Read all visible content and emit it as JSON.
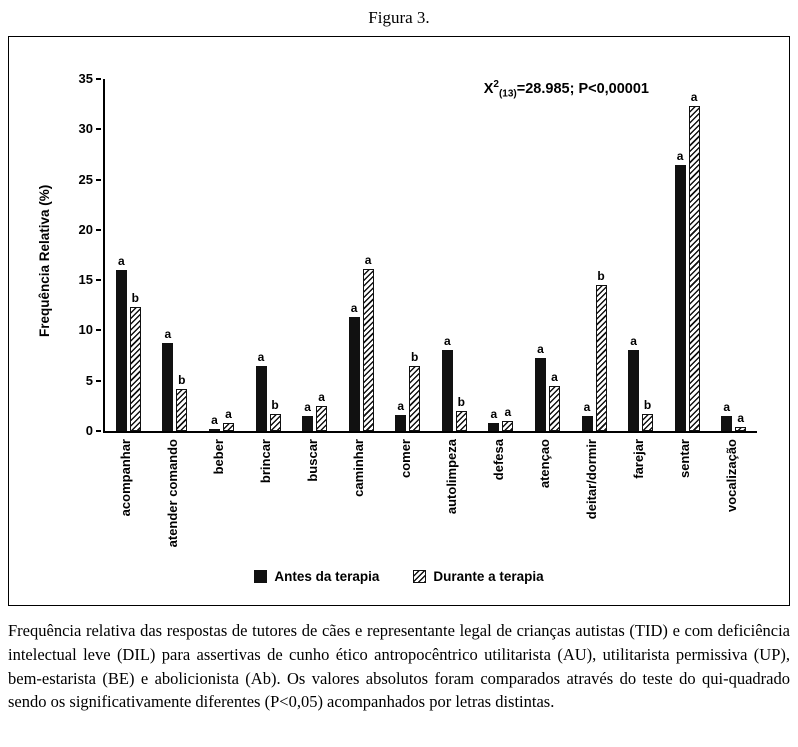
{
  "figure_title": "Figura 3.",
  "chart_data": {
    "type": "bar",
    "title": "",
    "xlabel": "",
    "ylabel": "Frequência Relativa (%)",
    "ylim": [
      0,
      35
    ],
    "yticks": [
      0,
      5,
      10,
      15,
      20,
      25,
      30,
      35
    ],
    "grid": false,
    "legend_position": "bottom",
    "annotation": {
      "base": "X",
      "sup": "2",
      "sub": "(13)",
      "rest": "=28.985; P<0,00001"
    },
    "categories": [
      "acompanhar",
      "atender comando",
      "beber",
      "brincar",
      "buscar",
      "caminhar",
      "comer",
      "autolimpeza",
      "defesa",
      "atençao",
      "deitar/dormir",
      "farejar",
      "sentar",
      "vocalização"
    ],
    "series": [
      {
        "name": "Antes da terapia",
        "style": "solid-black",
        "values": [
          16.0,
          8.8,
          0.2,
          6.5,
          1.5,
          11.3,
          1.6,
          8.1,
          0.8,
          7.3,
          1.5,
          8.1,
          26.5,
          1.5
        ],
        "letters": [
          "a",
          "a",
          "a",
          "a",
          "a",
          "a",
          "a",
          "a",
          "a",
          "a",
          "a",
          "a",
          "a",
          "a"
        ]
      },
      {
        "name": "Durante a terapia",
        "style": "hatched",
        "values": [
          12.3,
          4.2,
          0.8,
          1.7,
          2.5,
          16.1,
          6.5,
          2.0,
          1.0,
          4.5,
          14.5,
          1.7,
          32.3,
          0.4
        ],
        "letters": [
          "b",
          "b",
          "a",
          "b",
          "a",
          "a",
          "b",
          "b",
          "a",
          "a",
          "b",
          "b",
          "a",
          "a"
        ]
      }
    ]
  },
  "caption": "Frequência relativa das respostas de tutores de cães e representante legal de crianças autistas (TID) e com deficiência intelectual leve (DIL) para assertivas de cunho ético antropocêntrico utilitarista (AU), utilitarista permissiva (UP), bem-estarista (BE) e abolicionista (Ab). Os valores absolutos foram comparados através do teste do qui-quadrado sendo os significativamente diferentes (P<0,05) acompanhados por letras distintas."
}
